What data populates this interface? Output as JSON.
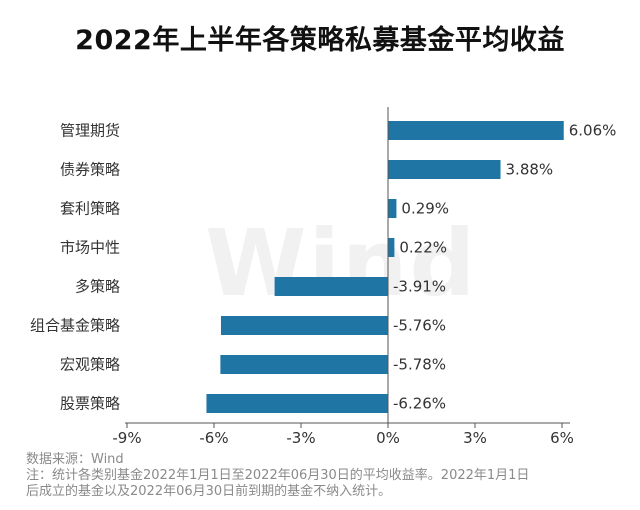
{
  "title": "2022年上半年各策略私募基金平均收益",
  "watermark": "Wind",
  "notes": {
    "source": "数据来源：Wind",
    "line1": "注：统计各类别基金2022年1月1日至2022年06月30日的平均收益率。2022年1月1日",
    "line2": "后成立的基金以及2022年06月30日前到期的基金不纳入统计。"
  },
  "colors": {
    "bar": "#1f75a3",
    "axis": "#555555",
    "text": "#333333"
  },
  "chart_data": {
    "type": "bar",
    "orientation": "horizontal",
    "categories": [
      "管理期货",
      "债券策略",
      "套利策略",
      "市场中性",
      "多策略",
      "组合基金策略",
      "宏观策略",
      "股票策略"
    ],
    "values": [
      6.06,
      3.88,
      0.29,
      0.22,
      -3.91,
      -5.76,
      -5.78,
      -6.26
    ],
    "value_labels": [
      "6.06%",
      "3.88%",
      "0.29%",
      "0.22%",
      "-3.91%",
      "-5.76%",
      "-5.78%",
      "-6.26%"
    ],
    "x_ticks": [
      -9,
      -6,
      -3,
      0,
      3,
      6
    ],
    "x_tick_labels": [
      "-9%",
      "-6%",
      "-3%",
      "0%",
      "3%",
      "6%"
    ],
    "xlim": [
      -9,
      6
    ],
    "grid": false,
    "legend": "none",
    "xlabel": "",
    "ylabel": ""
  }
}
